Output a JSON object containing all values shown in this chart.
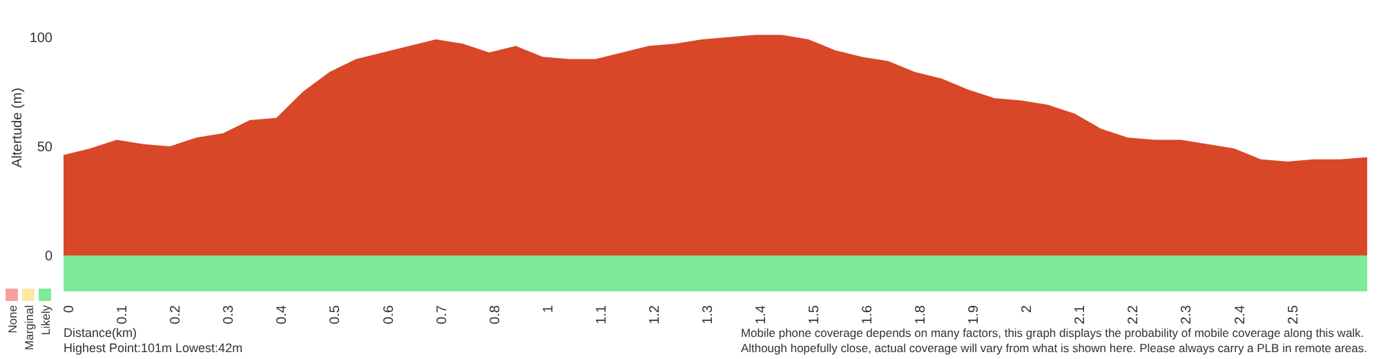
{
  "chart_data": {
    "type": "area",
    "xlabel": "Distance(km)",
    "ylabel": "Altertude (m)",
    "categories": [
      "0",
      null,
      "0.1",
      null,
      "0.2",
      null,
      "0.3",
      null,
      "0.4",
      null,
      "0.5",
      null,
      "0.6",
      null,
      "0.7",
      null,
      "0.8",
      null,
      "1",
      null,
      "1.1",
      null,
      "1.2",
      null,
      "1.3",
      null,
      "1.4",
      null,
      "1.5",
      null,
      "1.6",
      null,
      "1.8",
      null,
      "1.9",
      null,
      "2",
      null,
      "2.1",
      null,
      "2.2",
      null,
      "2.3",
      null,
      "2.4",
      null,
      "2.5",
      null,
      null,
      null
    ],
    "values": [
      46,
      49,
      53,
      51,
      50,
      54,
      56,
      62,
      63,
      75,
      84,
      90,
      93,
      96,
      99,
      97,
      93,
      96,
      91,
      90,
      90,
      93,
      96,
      97,
      99,
      100,
      101,
      101,
      99,
      94,
      91,
      89,
      84,
      81,
      76,
      72,
      71,
      69,
      65,
      58,
      54,
      53,
      53,
      51,
      49,
      44,
      43,
      44,
      44,
      45
    ],
    "color": "#d84727",
    "ylim": [
      0,
      117
    ],
    "yticks": [
      0,
      50,
      100
    ],
    "annotations": [
      "Highest Point:101m Lowest:42m",
      "Mobile phone coverage depends on many factors, this graph displays the probability of mobile coverage along this walk.",
      "Although hopefully close, actual coverage will vary from what is shown here. Please always carry a PLB in remote areas.",
      "None",
      "Marginal",
      "Likely"
    ]
  }
}
